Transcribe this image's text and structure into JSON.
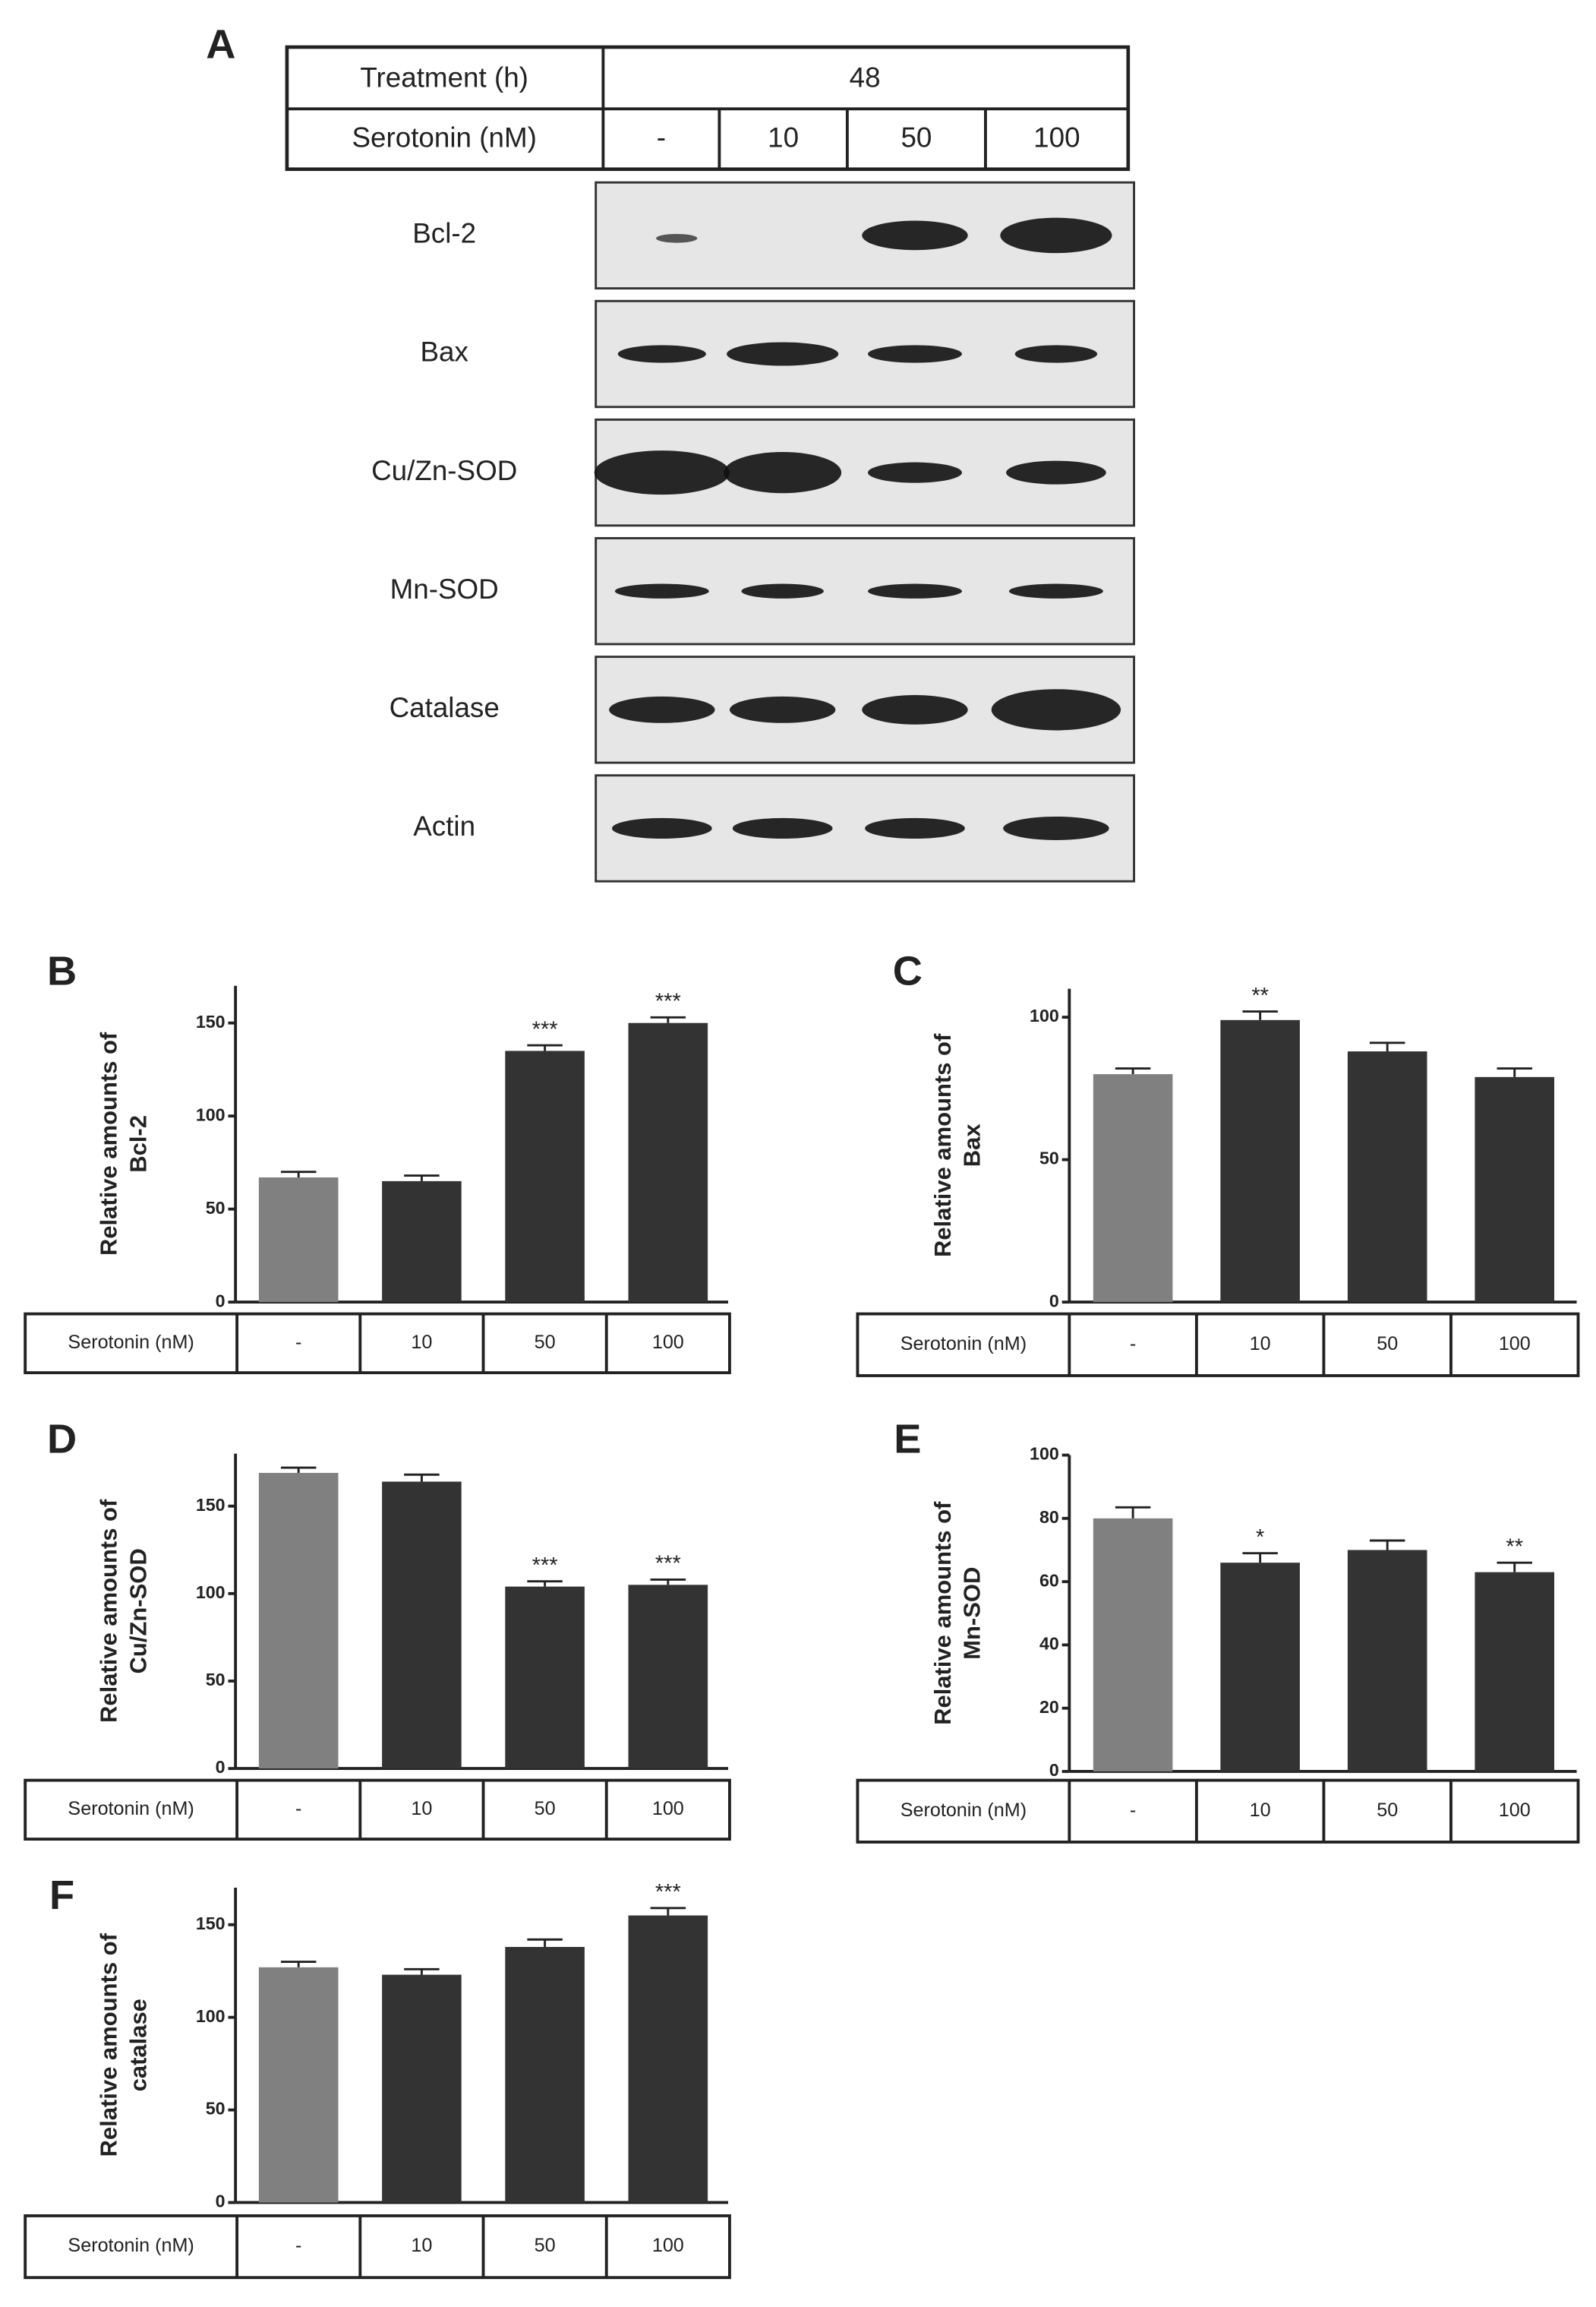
{
  "blot": {
    "label": "A",
    "treatment_label": "Treatment (h)",
    "treatment_value": "48",
    "dose_label": "Serotonin (nM)",
    "doses": [
      "-",
      "10",
      "50",
      "100"
    ],
    "rows": [
      "Bcl-2",
      "Bax",
      "Cu/Zn-SOD",
      "Mn-SOD",
      "Catalase",
      "Actin"
    ]
  },
  "chart_data": [
    {
      "type": "bar",
      "label": "B",
      "ylabel": [
        "Relative amounts of",
        "Bcl-2"
      ],
      "x_label": "Serotonin (nM)",
      "categories": [
        "-",
        "10",
        "50",
        "100"
      ],
      "values": [
        67,
        65,
        135,
        150
      ],
      "errors": [
        3,
        3,
        3,
        3
      ],
      "annotations": [
        null,
        null,
        "***",
        "***"
      ],
      "colors": [
        "#808080",
        "#333333",
        "#333333",
        "#333333"
      ],
      "ylim": [
        0,
        170
      ],
      "yticks": [
        0,
        50,
        100,
        150
      ]
    },
    {
      "type": "bar",
      "label": "C",
      "ylabel": [
        "Relative amounts of",
        "Bax"
      ],
      "x_label": "Serotonin (nM)",
      "categories": [
        "-",
        "10",
        "50",
        "100"
      ],
      "values": [
        80,
        99,
        88,
        79
      ],
      "errors": [
        2,
        3,
        3,
        3
      ],
      "annotations": [
        null,
        "**",
        null,
        null
      ],
      "colors": [
        "#808080",
        "#333333",
        "#333333",
        "#333333"
      ],
      "ylim": [
        0,
        110
      ],
      "yticks": [
        0,
        50,
        100
      ]
    },
    {
      "type": "bar",
      "label": "D",
      "ylabel": [
        "Relative amounts of",
        "Cu/Zn-SOD"
      ],
      "x_label": "Serotonin (nM)",
      "categories": [
        "-",
        "10",
        "50",
        "100"
      ],
      "values": [
        169,
        164,
        104,
        105
      ],
      "errors": [
        3,
        4,
        3,
        3
      ],
      "annotations": [
        null,
        null,
        "***",
        "***"
      ],
      "colors": [
        "#808080",
        "#333333",
        "#333333",
        "#333333"
      ],
      "ylim": [
        0,
        180
      ],
      "yticks": [
        0,
        50,
        100,
        150
      ]
    },
    {
      "type": "bar",
      "label": "E",
      "ylabel": [
        "Relative amounts of",
        "Mn-SOD"
      ],
      "x_label": "Serotonin (nM)",
      "categories": [
        "-",
        "10",
        "50",
        "100"
      ],
      "values": [
        80,
        66,
        70,
        63
      ],
      "errors": [
        3.5,
        3,
        3,
        3
      ],
      "annotations": [
        null,
        "*",
        null,
        "**"
      ],
      "colors": [
        "#808080",
        "#333333",
        "#333333",
        "#333333"
      ],
      "ylim": [
        0,
        100
      ],
      "yticks": [
        0,
        20,
        40,
        60,
        80,
        100
      ]
    },
    {
      "type": "bar",
      "label": "F",
      "ylabel": [
        "Relative amounts of",
        "catalase"
      ],
      "x_label": "Serotonin (nM)",
      "categories": [
        "-",
        "10",
        "50",
        "100"
      ],
      "values": [
        127,
        123,
        138,
        155
      ],
      "errors": [
        3,
        3,
        4,
        4
      ],
      "annotations": [
        null,
        null,
        null,
        "***"
      ],
      "colors": [
        "#808080",
        "#333333",
        "#333333",
        "#333333"
      ],
      "ylim": [
        0,
        170
      ],
      "yticks": [
        0,
        50,
        100,
        150
      ]
    }
  ]
}
